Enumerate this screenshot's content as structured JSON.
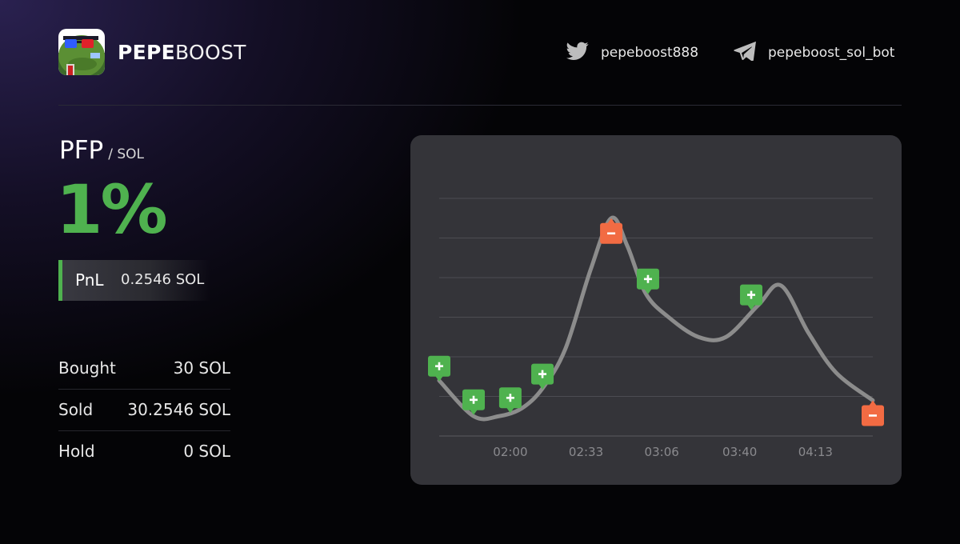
{
  "brand": {
    "name_bold": "PEPE",
    "name_light": "BOOST"
  },
  "social": {
    "twitter_handle": "pepeboost888",
    "telegram_handle": "pepeboost_sol_bot"
  },
  "trade": {
    "token": "PFP",
    "quote": "/ SOL",
    "pnl_percent": "1%",
    "pnl_label": "PnL",
    "pnl_value": "0.2546 SOL"
  },
  "stats": [
    {
      "label": "Bought",
      "value": "30 SOL"
    },
    {
      "label": "Sold",
      "value": "30.2546 SOL"
    },
    {
      "label": "Hold",
      "value": "0 SOL"
    }
  ],
  "colors": {
    "profit": "#4fb24f",
    "buy_marker": "#4fb24f",
    "sell_marker": "#f26b43",
    "line": "#8c8c8c",
    "panel": "#343439"
  },
  "icons": {
    "twitter": "twitter-bird-icon",
    "telegram": "telegram-plane-icon",
    "buy": "plus-icon",
    "sell": "minus-icon"
  },
  "chart_data": {
    "type": "line",
    "title": "",
    "xlabel": "",
    "ylabel": "",
    "x_ticks": [
      "02:00",
      "02:33",
      "03:06",
      "03:40",
      "04:13"
    ],
    "x_range": [
      "01:29",
      "04:38"
    ],
    "y_range": [
      0,
      6
    ],
    "y_ticks_labeled": false,
    "grid": "horizontal",
    "series": [
      {
        "x": [
          "01:29",
          "01:44",
          "01:55",
          "02:05",
          "02:14",
          "02:24",
          "02:35",
          "02:44",
          "02:51",
          "02:59",
          "03:09",
          "03:22",
          "03:34",
          "03:48",
          "03:58",
          "04:10",
          "04:22",
          "04:38"
        ],
        "y": [
          1.4,
          0.5,
          0.5,
          0.7,
          1.2,
          2.2,
          4.2,
          5.5,
          4.8,
          3.6,
          3.0,
          2.5,
          2.5,
          3.3,
          3.8,
          2.6,
          1.6,
          0.9
        ]
      }
    ],
    "markers": [
      {
        "type": "buy",
        "x": "01:29",
        "y": 1.4
      },
      {
        "type": "buy",
        "x": "01:44",
        "y": 0.55
      },
      {
        "type": "buy",
        "x": "02:00",
        "y": 0.6
      },
      {
        "type": "buy",
        "x": "02:14",
        "y": 1.2
      },
      {
        "type": "sell",
        "x": "02:44",
        "y": 5.5
      },
      {
        "type": "buy",
        "x": "03:00",
        "y": 3.6
      },
      {
        "type": "buy",
        "x": "03:45",
        "y": 3.2
      },
      {
        "type": "sell",
        "x": "04:38",
        "y": 0.9
      }
    ]
  }
}
